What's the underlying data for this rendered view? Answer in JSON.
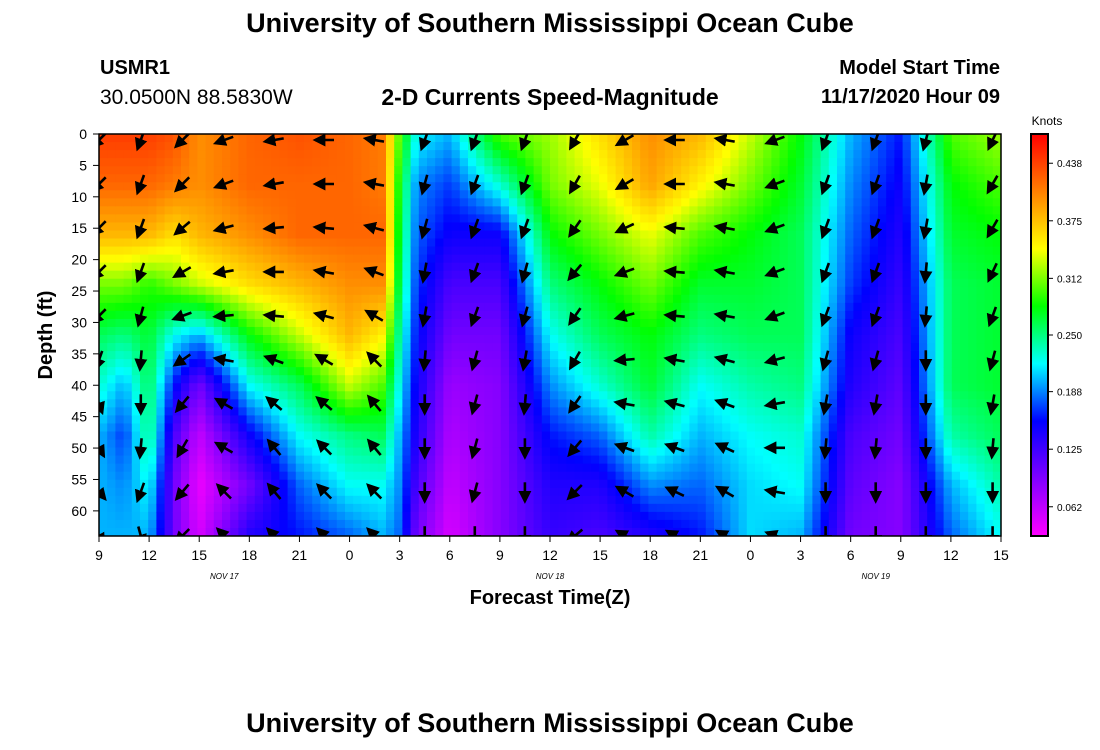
{
  "page": {
    "title_top": "University of Southern Mississippi Ocean Cube",
    "title_bottom": "University of Southern Mississippi Ocean Cube",
    "station_id": "USMR1",
    "station_coords": "30.0500N 88.5830W",
    "plot_title": "2-D Currents Speed-Magnitude",
    "model_start_label": "Model Start Time",
    "model_start_value": "11/17/2020 Hour 09"
  },
  "chart_data": {
    "type": "heatmap",
    "xlabel": "Forecast Time(Z)",
    "ylabel": "Depth (ft)",
    "x_tick_labels": [
      "9",
      "12",
      "15",
      "18",
      "21",
      "0",
      "3",
      "6",
      "9",
      "12",
      "15",
      "18",
      "21",
      "0",
      "3",
      "6",
      "9",
      "12",
      "15"
    ],
    "x_hours": [
      0,
      3,
      6,
      9,
      12,
      15,
      18,
      21,
      24,
      27,
      30,
      33,
      36,
      39,
      42,
      45,
      48,
      51,
      54
    ],
    "date_labels": [
      {
        "text": "NOV 17",
        "hour": 7.5
      },
      {
        "text": "NOV 18",
        "hour": 27
      },
      {
        "text": "NOV 19",
        "hour": 46.5
      }
    ],
    "xlim_hours": [
      0,
      54
    ],
    "y_ticks": [
      0,
      5,
      10,
      15,
      20,
      25,
      30,
      35,
      40,
      45,
      50,
      55,
      60
    ],
    "ylim": [
      0,
      64
    ],
    "colorbar": {
      "unit_label": "Knots",
      "tick_values": [
        0.062,
        0.125,
        0.188,
        0.25,
        0.312,
        0.375,
        0.438
      ],
      "tick_labels": [
        "0.062",
        "0.125",
        "0.188",
        "0.250",
        "0.312",
        "0.375",
        "0.438"
      ],
      "range": [
        0.03,
        0.47
      ],
      "palette": [
        "#ff00ff",
        "#8000ff",
        "#0000ff",
        "#00ffff",
        "#00ff00",
        "#ffff00",
        "#ff8000",
        "#ff0000"
      ]
    },
    "profile_depths": [
      0,
      8,
      16,
      24,
      32,
      40,
      48,
      56,
      64
    ],
    "speed_profiles": [
      {
        "hour": 0,
        "speed": [
          0.44,
          0.42,
          0.38,
          0.31,
          0.26,
          0.23,
          0.2,
          0.2,
          0.2
        ]
      },
      {
        "hour": 1.5,
        "speed": [
          0.44,
          0.42,
          0.38,
          0.31,
          0.25,
          0.2,
          0.17,
          0.19,
          0.2
        ]
      },
      {
        "hour": 3,
        "speed": [
          0.44,
          0.42,
          0.38,
          0.29,
          0.27,
          0.26,
          0.25,
          0.22,
          0.2
        ]
      },
      {
        "hour": 4.5,
        "speed": [
          0.43,
          0.41,
          0.36,
          0.31,
          0.22,
          0.16,
          0.12,
          0.1,
          0.1
        ]
      },
      {
        "hour": 6,
        "speed": [
          0.4,
          0.4,
          0.38,
          0.33,
          0.2,
          0.1,
          0.06,
          0.04,
          0.05
        ]
      },
      {
        "hour": 9,
        "speed": [
          0.42,
          0.42,
          0.4,
          0.36,
          0.28,
          0.22,
          0.15,
          0.1,
          0.14
        ]
      },
      {
        "hour": 12,
        "speed": [
          0.43,
          0.42,
          0.42,
          0.38,
          0.33,
          0.26,
          0.22,
          0.18,
          0.16
        ]
      },
      {
        "hour": 15,
        "speed": [
          0.42,
          0.42,
          0.42,
          0.4,
          0.38,
          0.33,
          0.25,
          0.22,
          0.18
        ]
      },
      {
        "hour": 17,
        "speed": [
          0.41,
          0.41,
          0.42,
          0.4,
          0.35,
          0.3,
          0.26,
          0.22,
          0.2
        ]
      },
      {
        "hour": 18,
        "speed": [
          0.3,
          0.28,
          0.27,
          0.26,
          0.24,
          0.22,
          0.2,
          0.19,
          0.18
        ]
      },
      {
        "hour": 19,
        "speed": [
          0.22,
          0.19,
          0.18,
          0.17,
          0.16,
          0.15,
          0.14,
          0.12,
          0.1
        ]
      },
      {
        "hour": 21,
        "speed": [
          0.2,
          0.17,
          0.15,
          0.12,
          0.1,
          0.08,
          0.07,
          0.06,
          0.05
        ]
      },
      {
        "hour": 24,
        "speed": [
          0.3,
          0.23,
          0.15,
          0.12,
          0.1,
          0.09,
          0.09,
          0.09,
          0.09
        ]
      },
      {
        "hour": 27,
        "speed": [
          0.32,
          0.31,
          0.28,
          0.25,
          0.22,
          0.19,
          0.16,
          0.14,
          0.13
        ]
      },
      {
        "hour": 30,
        "speed": [
          0.36,
          0.34,
          0.31,
          0.28,
          0.26,
          0.23,
          0.18,
          0.14,
          0.12
        ]
      },
      {
        "hour": 33,
        "speed": [
          0.4,
          0.39,
          0.34,
          0.31,
          0.28,
          0.27,
          0.24,
          0.19,
          0.14
        ]
      },
      {
        "hour": 36,
        "speed": [
          0.38,
          0.35,
          0.3,
          0.27,
          0.25,
          0.22,
          0.2,
          0.18,
          0.16
        ]
      },
      {
        "hour": 39,
        "speed": [
          0.33,
          0.31,
          0.28,
          0.27,
          0.26,
          0.24,
          0.22,
          0.21,
          0.21
        ]
      },
      {
        "hour": 42,
        "speed": [
          0.28,
          0.27,
          0.26,
          0.26,
          0.26,
          0.25,
          0.23,
          0.22,
          0.2
        ]
      },
      {
        "hour": 45,
        "speed": [
          0.2,
          0.19,
          0.18,
          0.17,
          0.15,
          0.14,
          0.12,
          0.11,
          0.1
        ]
      },
      {
        "hour": 48,
        "speed": [
          0.16,
          0.15,
          0.14,
          0.13,
          0.12,
          0.11,
          0.1,
          0.09,
          0.09
        ]
      },
      {
        "hour": 51,
        "speed": [
          0.3,
          0.28,
          0.27,
          0.26,
          0.26,
          0.26,
          0.24,
          0.2,
          0.18
        ]
      },
      {
        "hour": 54,
        "speed": [
          0.32,
          0.3,
          0.28,
          0.27,
          0.27,
          0.27,
          0.26,
          0.24,
          0.22
        ]
      }
    ],
    "vector_depths": [
      0,
      7,
      14,
      21,
      28,
      35,
      42,
      49,
      56,
      63
    ],
    "vector_columns": [
      {
        "hour": 0,
        "bearing": [
          225,
          225,
          225,
          225,
          225,
          200,
          160,
          150,
          140,
          150
        ]
      },
      {
        "hour": 2.5,
        "bearing": [
          200,
          200,
          200,
          200,
          195,
          185,
          180,
          185,
          200,
          165
        ]
      },
      {
        "hour": 5,
        "bearing": [
          225,
          225,
          230,
          240,
          250,
          235,
          220,
          210,
          220,
          225
        ]
      },
      {
        "hour": 7.5,
        "bearing": [
          250,
          250,
          255,
          260,
          265,
          280,
          300,
          300,
          315,
          315
        ]
      },
      {
        "hour": 10.5,
        "bearing": [
          260,
          260,
          265,
          270,
          275,
          290,
          310,
          320,
          320,
          315
        ]
      },
      {
        "hour": 13.5,
        "bearing": [
          270,
          270,
          275,
          280,
          285,
          300,
          310,
          315,
          315,
          315
        ]
      },
      {
        "hour": 16.5,
        "bearing": [
          280,
          280,
          285,
          290,
          300,
          315,
          320,
          320,
          315,
          315
        ]
      },
      {
        "hour": 19.5,
        "bearing": [
          200,
          195,
          195,
          190,
          190,
          185,
          180,
          180,
          180,
          180
        ]
      },
      {
        "hour": 22.5,
        "bearing": [
          200,
          200,
          200,
          200,
          200,
          195,
          195,
          195,
          195,
          180
        ]
      },
      {
        "hour": 25.5,
        "bearing": [
          200,
          200,
          200,
          195,
          195,
          190,
          185,
          180,
          180,
          180
        ]
      },
      {
        "hour": 28.5,
        "bearing": [
          210,
          210,
          215,
          220,
          215,
          210,
          215,
          220,
          225,
          230
        ]
      },
      {
        "hour": 31.5,
        "bearing": [
          240,
          240,
          245,
          250,
          255,
          265,
          280,
          290,
          300,
          300
        ]
      },
      {
        "hour": 34.5,
        "bearing": [
          270,
          270,
          275,
          275,
          275,
          280,
          285,
          290,
          295,
          300
        ]
      },
      {
        "hour": 37.5,
        "bearing": [
          280,
          280,
          280,
          280,
          280,
          285,
          290,
          295,
          300,
          300
        ]
      },
      {
        "hour": 40.5,
        "bearing": [
          250,
          250,
          250,
          250,
          250,
          255,
          260,
          270,
          280,
          290
        ]
      },
      {
        "hour": 43.5,
        "bearing": [
          200,
          200,
          200,
          200,
          200,
          195,
          190,
          185,
          180,
          180
        ]
      },
      {
        "hour": 46.5,
        "bearing": [
          200,
          200,
          200,
          200,
          200,
          195,
          190,
          185,
          180,
          180
        ]
      },
      {
        "hour": 49.5,
        "bearing": [
          195,
          190,
          190,
          185,
          185,
          180,
          180,
          180,
          180,
          180
        ]
      },
      {
        "hour": 53.5,
        "bearing": [
          205,
          210,
          210,
          205,
          200,
          195,
          190,
          185,
          180,
          180
        ]
      }
    ]
  }
}
